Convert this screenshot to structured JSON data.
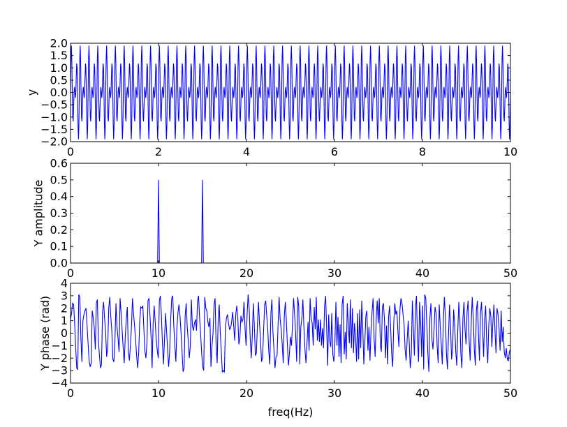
{
  "chart_data": [
    {
      "type": "line",
      "title": "",
      "xlabel": "",
      "ylabel": "y",
      "xlim": [
        0,
        10
      ],
      "ylim": [
        -2.0,
        2.0
      ],
      "xticks": [
        0,
        2,
        4,
        6,
        8,
        10
      ],
      "xtick_labels": [
        "0",
        "2",
        "4",
        "6",
        "8",
        "10"
      ],
      "yticks": [
        -2.0,
        -1.5,
        -1.0,
        -0.5,
        0.0,
        0.5,
        1.0,
        1.5,
        2.0
      ],
      "ytick_labels": [
        "−2.0",
        "−1.5",
        "−1.0",
        "−0.5",
        "0.0",
        "0.5",
        "1.0",
        "1.5",
        "2.0"
      ],
      "series": [
        {
          "color": "#0000ff",
          "formula": "sin(2*pi*10*t) + sin(2*pi*15*t)",
          "frequencies_hz": [
            10,
            15
          ],
          "amplitudes": [
            1,
            1
          ],
          "sample_rate_hz": 100,
          "t_start": 0,
          "t_end": 10
        }
      ],
      "grid": false
    },
    {
      "type": "line",
      "title": "",
      "xlabel": "",
      "ylabel": "Y amplitude",
      "xlim": [
        0,
        50
      ],
      "ylim": [
        0.0,
        0.6
      ],
      "xticks": [
        0,
        10,
        20,
        30,
        40,
        50
      ],
      "xtick_labels": [
        "0",
        "10",
        "20",
        "30",
        "40",
        "50"
      ],
      "yticks": [
        0.0,
        0.1,
        0.2,
        0.3,
        0.4,
        0.5,
        0.6
      ],
      "ytick_labels": [
        "0.0",
        "0.1",
        "0.2",
        "0.3",
        "0.4",
        "0.5",
        "0.6"
      ],
      "series": [
        {
          "color": "#0000ff",
          "baseline": 0.0,
          "peaks": [
            {
              "x": 10,
              "y": 0.5
            },
            {
              "x": 15,
              "y": 0.5
            }
          ],
          "x_step": 0.1
        }
      ],
      "grid": false
    },
    {
      "type": "line",
      "title": "",
      "xlabel": "freq(Hz)",
      "ylabel": "Y phase (rad)",
      "xlim": [
        0,
        50
      ],
      "ylim": [
        -4,
        4
      ],
      "xticks": [
        0,
        10,
        20,
        30,
        40,
        50
      ],
      "xtick_labels": [
        "0",
        "10",
        "20",
        "30",
        "40",
        "50"
      ],
      "yticks": [
        -4,
        -3,
        -2,
        -1,
        0,
        1,
        2,
        3,
        4
      ],
      "ytick_labels": [
        "−4",
        "−3",
        "−2",
        "−1",
        "0",
        "1",
        "2",
        "3",
        "4"
      ],
      "series": [
        {
          "color": "#0000ff",
          "x_step": 0.1,
          "y": [
            1.1,
            1.6,
            2.4,
            2.3,
            0.8,
            -1.2,
            -2.8,
            -2.9,
            3.1,
            2.9,
            -0.3,
            -2.3,
            1.0,
            1.5,
            1.8,
            2.0,
            0.6,
            -0.8,
            -2.2,
            -2.7,
            -2.4,
            1.8,
            1.2,
            0.4,
            -1.3,
            2.4,
            2.7,
            -0.6,
            -1.8,
            -2.8,
            -2.5,
            1.7,
            2.5,
            1.2,
            0.0,
            -1.9,
            -1.1,
            2.0,
            2.9,
            1.3,
            0.2,
            -2.1,
            -2.3,
            -0.6,
            2.4,
            0.5,
            -0.4,
            -1.5,
            2.8,
            1.6,
            0.2,
            -1.2,
            -2.4,
            -0.3,
            1.1,
            2.1,
            -1.5,
            -2.2,
            -1.0,
            0.5,
            2.8,
            1.6,
            0.6,
            -0.5,
            -1.8,
            -2.8,
            -1.6,
            0.9,
            2.1,
            2.0,
            2.2,
            0.4,
            -1.4,
            -2.0,
            -0.8,
            2.6,
            2.8,
            1.3,
            -0.3,
            -2.8,
            0.8,
            2.2,
            0.9,
            -0.5,
            -1.4,
            -2.0,
            2.6,
            3.0,
            1.4,
            -0.8,
            -2.5,
            -0.5,
            1.6,
            0.2,
            -1.3,
            -2.7,
            -1.5,
            1.1,
            2.8,
            3.0,
            0.6,
            -1.0,
            -2.3,
            0.4,
            1.6,
            2.3,
            1.4,
            0.1,
            -1.5,
            -3.1,
            -2.8,
            1.4,
            2.4,
            0.5,
            -0.6,
            -2.0,
            -1.0,
            2.7,
            0.6,
            0.2,
            0.8,
            1.1,
            0.2,
            2.6,
            3.0,
            1.2,
            -0.1,
            -1.6,
            -2.7,
            -3.0,
            2.9,
            2.0,
            1.8,
            0.9,
            0.5,
            1.2,
            -2.7,
            -1.0,
            0.0,
            2.3,
            2.8,
            -1.0,
            -2.4,
            1.1,
            2.3,
            0.1,
            -1.5,
            -3.1,
            -3.0,
            -3.1,
            0.5,
            1.2,
            1.5,
            0.8,
            0.3,
            0.4,
            0.9,
            1.7,
            0.6,
            -0.6,
            1.5,
            2.2,
            1.2,
            -0.9,
            -0.4,
            1.4,
            0.9,
            1.1,
            2.5,
            0.4,
            -1.0,
            1.5,
            3.1,
            2.0,
            -0.4,
            -2.0,
            -0.3,
            2.4,
            0.6,
            -1.8,
            -1.6,
            0.7,
            2.5,
            0.8,
            -0.6,
            -2.3,
            -1.9,
            0.3,
            2.3,
            2.6,
            1.4,
            0.3,
            -1.5,
            -2.5,
            1.5,
            2.7,
            0.1,
            -1.3,
            -2.8,
            -1.9,
            -1.8,
            0.7,
            2.9,
            1.1,
            0.3,
            -0.9,
            -2.4,
            1.4,
            2.5,
            1.0,
            -0.9,
            -2.6,
            -1.6,
            -0.3,
            -1.0,
            0.8,
            2.8,
            1.5,
            -0.1,
            -2.3,
            2.9,
            2.2,
            -2.5,
            0.5,
            1.2,
            2.7,
            0.5,
            -1.3,
            -2.4,
            -0.8,
            0.9,
            -1.4,
            2.8,
            1.2,
            0.8,
            -1.0,
            2.1,
            0.3,
            2.9,
            -0.6,
            1.1,
            -0.7,
            1.1,
            -1.0,
            0.4,
            -1.2,
            2.2,
            3.0,
            0.5,
            -2.6,
            1.5,
            -0.6,
            -1.1,
            1.6,
            -1.7,
            -2.3,
            -0.8,
            2.5,
            -1.0,
            1.3,
            -1.9,
            0.7,
            -2.4,
            2.3,
            3.0,
            -1.7,
            0.1,
            -2.1,
            2.4,
            0.6,
            -0.8,
            2.7,
            -1.2,
            2.0,
            -1.6,
            0.8,
            -0.3,
            -2.3,
            1.6,
            -2.1,
            1.9,
            -1.2,
            2.6,
            0.4,
            -2.5,
            -0.7,
            1.4,
            1.8,
            -1.4,
            0.5,
            -2.2,
            0.2,
            1.7,
            2.8,
            -0.5,
            -1.9,
            1.2,
            2.6,
            0.8,
            2.8,
            -0.9,
            -1.5,
            2.1,
            2.4,
            1.1,
            -2.0,
            0.6,
            -2.5,
            1.3,
            2.2,
            0.4,
            -1.7,
            -2.7,
            0.8,
            2.4,
            1.5,
            1.8,
            0.2,
            -1.1,
            1.9,
            2.8,
            2.4,
            1.5,
            0.7,
            -1.3,
            -2.2,
            -0.5,
            1.0,
            -0.8,
            -2.8,
            -1.7,
            2.6,
            0.4,
            -1.8,
            2.0,
            3.0,
            -0.4,
            -2.3,
            2.5,
            1.0,
            -1.9,
            2.2,
            -2.9,
            3.1,
            2.8,
            0.8,
            -1.6,
            -3.1,
            1.2,
            2.4,
            -0.5,
            -1.3,
            0.3,
            2.1,
            1.6,
            -1.0,
            -2.4,
            2.3,
            0.6,
            -0.9,
            -2.5,
            0.9,
            2.9,
            1.4,
            -1.6,
            -2.9,
            -0.2,
            2.3,
            0.5,
            -2.1,
            -1.2,
            1.9,
            0.7,
            -1.4,
            -2.6,
            0.2,
            2.5,
            1.1,
            -1.7,
            -2.8,
            1.2,
            2.5,
            0.3,
            -0.9,
            1.7,
            2.6,
            -0.6,
            -2.2,
            0.8,
            2.9,
            1.2,
            -1.3,
            -2.6,
            1.8,
            2.6,
            -0.1,
            -2.2,
            1.6,
            2.5,
            0.4,
            -1.9,
            1.1,
            2.2,
            -0.8,
            -2.4,
            0.6,
            2.0,
            1.4,
            -1.1,
            0.9,
            2.3,
            0.2,
            -1.6,
            2.0,
            1.5,
            0.3,
            -1.4,
            1.8,
            -0.7,
            0.5,
            -1.5,
            -2.0,
            -1.2,
            -2.1,
            -2.2,
            -1.5,
            -1.3
          ]
        }
      ],
      "grid": false
    }
  ]
}
